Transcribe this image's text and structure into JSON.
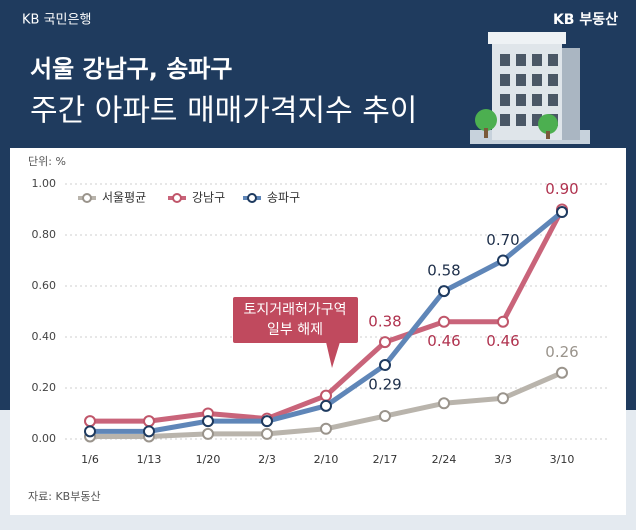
{
  "header": {
    "bank": "KB 국민은행",
    "brand": "KB 부동산"
  },
  "chart_data": {
    "type": "line",
    "title": "서울 강남구, 송파구",
    "subtitle": "주간 아파트 매매가격지수 추이",
    "unit_label": "단위: %",
    "source": "자료: KB부동산",
    "annotation": [
      "토지거래허가구역",
      "일부 해제"
    ],
    "categories": [
      "1/6",
      "1/13",
      "1/20",
      "2/3",
      "2/10",
      "2/17",
      "2/24",
      "3/3",
      "3/10"
    ],
    "series": [
      {
        "name": "서울평균",
        "color": "#b9b4ac",
        "values": [
          0.01,
          0.01,
          0.02,
          0.02,
          0.04,
          0.09,
          0.14,
          0.16,
          0.26
        ],
        "value_labels": [
          null,
          null,
          null,
          null,
          null,
          null,
          null,
          null,
          "0.26"
        ]
      },
      {
        "name": "강남구",
        "color": "#c9647a",
        "values": [
          0.07,
          0.07,
          0.1,
          0.08,
          0.17,
          0.38,
          0.46,
          0.46,
          0.9
        ],
        "value_labels": [
          null,
          null,
          null,
          null,
          null,
          "0.38",
          "0.46",
          "0.46",
          "0.90"
        ]
      },
      {
        "name": "송파구",
        "color": "#5f86b8",
        "values": [
          0.03,
          0.03,
          0.07,
          0.07,
          0.13,
          0.29,
          0.58,
          0.7,
          0.89
        ],
        "value_labels": [
          null,
          null,
          null,
          null,
          null,
          "0.29",
          "0.58",
          "0.70",
          null
        ]
      }
    ],
    "ylim": [
      0,
      1
    ],
    "yticks": [
      {
        "value": 0,
        "label": "0.00"
      },
      {
        "value": 0.2,
        "label": "0.20"
      },
      {
        "value": 0.4,
        "label": "0.40"
      },
      {
        "value": 0.6,
        "label": "0.60"
      },
      {
        "value": 0.8,
        "label": "0.80"
      },
      {
        "value": 1,
        "label": "1.00"
      }
    ],
    "grid": true,
    "legend": "top-left"
  }
}
